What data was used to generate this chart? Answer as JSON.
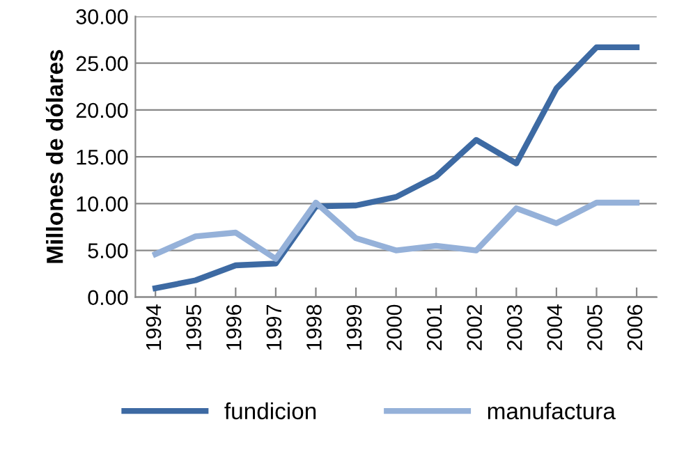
{
  "chart_data": {
    "type": "line",
    "ylabel": "Millones de dólares",
    "categories": [
      "1994",
      "1995",
      "1996",
      "1997",
      "1998",
      "1999",
      "2000",
      "2001",
      "2002",
      "2003",
      "2004",
      "2005",
      "2006"
    ],
    "series": [
      {
        "name": "fundicion",
        "color": "#3d6aa3",
        "values": [
          0.96,
          1.8,
          3.4,
          3.6,
          9.7,
          9.8,
          10.7,
          12.9,
          16.8,
          14.3,
          22.3,
          26.7,
          26.7
        ]
      },
      {
        "name": "manufactura",
        "color": "#95b1d9",
        "values": [
          4.6,
          6.5,
          6.9,
          4.1,
          10.1,
          6.3,
          5.0,
          5.5,
          5.0,
          9.5,
          7.9,
          10.1,
          10.1
        ]
      }
    ],
    "ylim": [
      0,
      30
    ],
    "yticks": [
      {
        "value": 0,
        "label": "0.00"
      },
      {
        "value": 5,
        "label": "5.00"
      },
      {
        "value": 10,
        "label": "10.00"
      },
      {
        "value": 15,
        "label": "15.00"
      },
      {
        "value": 20,
        "label": "20.00"
      },
      {
        "value": 25,
        "label": "25.00"
      },
      {
        "value": 30,
        "label": "30.00"
      }
    ],
    "grid": "y",
    "legend": "bottom",
    "marker": "none",
    "line_style": "solid"
  }
}
